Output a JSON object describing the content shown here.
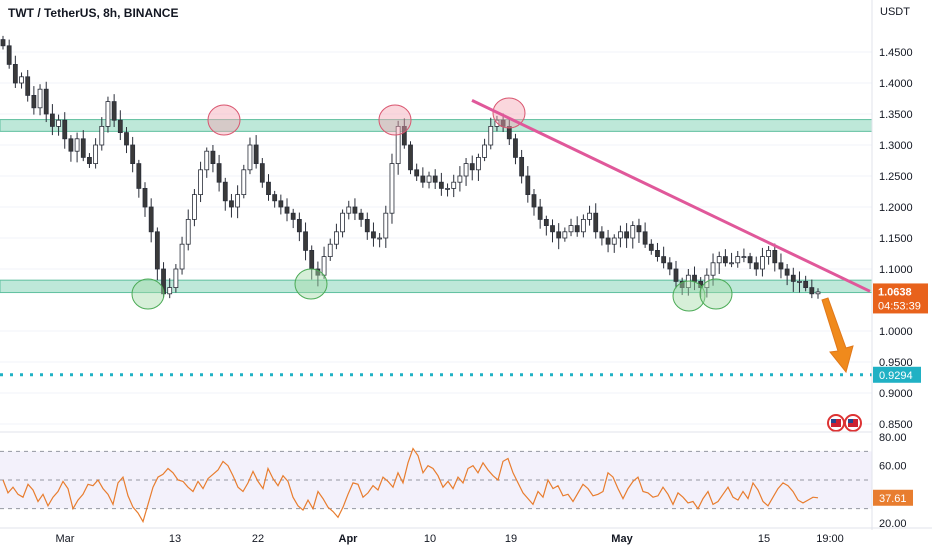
{
  "header": {
    "title": "TWT / TetherUS, 8h, BINANCE"
  },
  "chart_data": {
    "type": "candlestick",
    "title": "TWT / TetherUS, 8h, BINANCE",
    "price_axis": {
      "unit": "USDT",
      "ticks": [
        "1.4500",
        "1.4000",
        "1.3500",
        "1.3000",
        "1.2500",
        "1.2000",
        "1.1500",
        "1.1000",
        "1.0000",
        "0.9500",
        "0.9000",
        "0.8500"
      ],
      "ylim": [
        0.83,
        1.5
      ]
    },
    "time_axis": {
      "ticks": [
        "Mar",
        "13",
        "22",
        "Apr",
        "10",
        "19",
        "May",
        "15",
        "19:00"
      ]
    },
    "current_price": {
      "value": "1.0638",
      "countdown": "04:53:39",
      "color": "#e8621c"
    },
    "target_level": {
      "value": "0.9294",
      "price": 0.9294,
      "color": "#20b1c4"
    },
    "zones": [
      {
        "name": "resistance",
        "from": 1.322,
        "to": 1.341,
        "color": "#a8e0cc"
      },
      {
        "name": "support",
        "from": 1.062,
        "to": 1.082,
        "color": "#a8e0cc"
      }
    ],
    "trendline": {
      "from_price": 1.372,
      "to_price": 1.064,
      "color": "#e0589a"
    },
    "price_series": [
      1.46,
      1.43,
      1.4,
      1.41,
      1.38,
      1.36,
      1.39,
      1.35,
      1.33,
      1.34,
      1.31,
      1.29,
      1.31,
      1.28,
      1.27,
      1.3,
      1.33,
      1.37,
      1.34,
      1.32,
      1.3,
      1.27,
      1.23,
      1.2,
      1.16,
      1.1,
      1.06,
      1.07,
      1.1,
      1.14,
      1.18,
      1.22,
      1.26,
      1.29,
      1.27,
      1.24,
      1.21,
      1.2,
      1.22,
      1.26,
      1.3,
      1.27,
      1.24,
      1.22,
      1.21,
      1.2,
      1.19,
      1.18,
      1.16,
      1.13,
      1.1,
      1.09,
      1.12,
      1.14,
      1.16,
      1.19,
      1.2,
      1.19,
      1.18,
      1.16,
      1.15,
      1.15,
      1.19,
      1.27,
      1.33,
      1.3,
      1.26,
      1.25,
      1.24,
      1.25,
      1.24,
      1.23,
      1.23,
      1.24,
      1.25,
      1.27,
      1.26,
      1.28,
      1.3,
      1.33,
      1.34,
      1.33,
      1.31,
      1.28,
      1.25,
      1.22,
      1.2,
      1.18,
      1.17,
      1.16,
      1.15,
      1.16,
      1.17,
      1.16,
      1.18,
      1.19,
      1.16,
      1.15,
      1.14,
      1.15,
      1.16,
      1.15,
      1.17,
      1.16,
      1.14,
      1.13,
      1.12,
      1.11,
      1.1,
      1.08,
      1.07,
      1.09,
      1.08,
      1.07,
      1.09,
      1.11,
      1.12,
      1.11,
      1.11,
      1.12,
      1.12,
      1.11,
      1.1,
      1.12,
      1.13,
      1.11,
      1.1,
      1.09,
      1.08,
      1.08,
      1.07,
      1.06,
      1.063
    ],
    "rsi": {
      "value": "37.61",
      "ticks": [
        "80.00",
        "60.00",
        "20.00"
      ],
      "ylim": [
        18,
        82
      ],
      "levels": [
        70,
        50,
        30
      ],
      "line_color": "#e87d2f",
      "series": [
        50,
        41,
        45,
        40,
        38,
        47,
        43,
        35,
        40,
        32,
        38,
        42,
        49,
        44,
        30,
        36,
        40,
        47,
        46,
        50,
        44,
        40,
        33,
        48,
        52,
        39,
        31,
        27,
        21,
        33,
        45,
        52,
        54,
        58,
        55,
        50,
        49,
        45,
        42,
        49,
        44,
        51,
        54,
        57,
        63,
        60,
        53,
        45,
        42,
        48,
        56,
        49,
        44,
        58,
        51,
        46,
        53,
        49,
        38,
        32,
        29,
        36,
        30,
        42,
        37,
        31,
        28,
        24,
        31,
        40,
        48,
        47,
        38,
        41,
        46,
        43,
        52,
        49,
        45,
        55,
        48,
        62,
        72,
        67,
        55,
        60,
        58,
        53,
        45,
        49,
        44,
        52,
        48,
        58,
        60,
        55,
        62,
        57,
        53,
        50,
        63,
        65,
        55,
        48,
        41,
        37,
        33,
        42,
        38,
        50,
        44,
        46,
        39,
        40,
        35,
        41,
        47,
        44,
        39,
        40,
        42,
        55,
        52,
        44,
        37,
        44,
        49,
        52,
        42,
        41,
        38,
        39,
        45,
        40,
        33,
        41,
        38,
        34,
        35,
        30,
        37,
        42,
        33,
        35,
        40,
        45,
        38,
        36,
        42,
        37,
        48,
        43,
        35,
        32,
        38,
        44,
        48,
        46,
        42,
        36,
        34,
        36,
        38,
        37.61
      ]
    }
  }
}
